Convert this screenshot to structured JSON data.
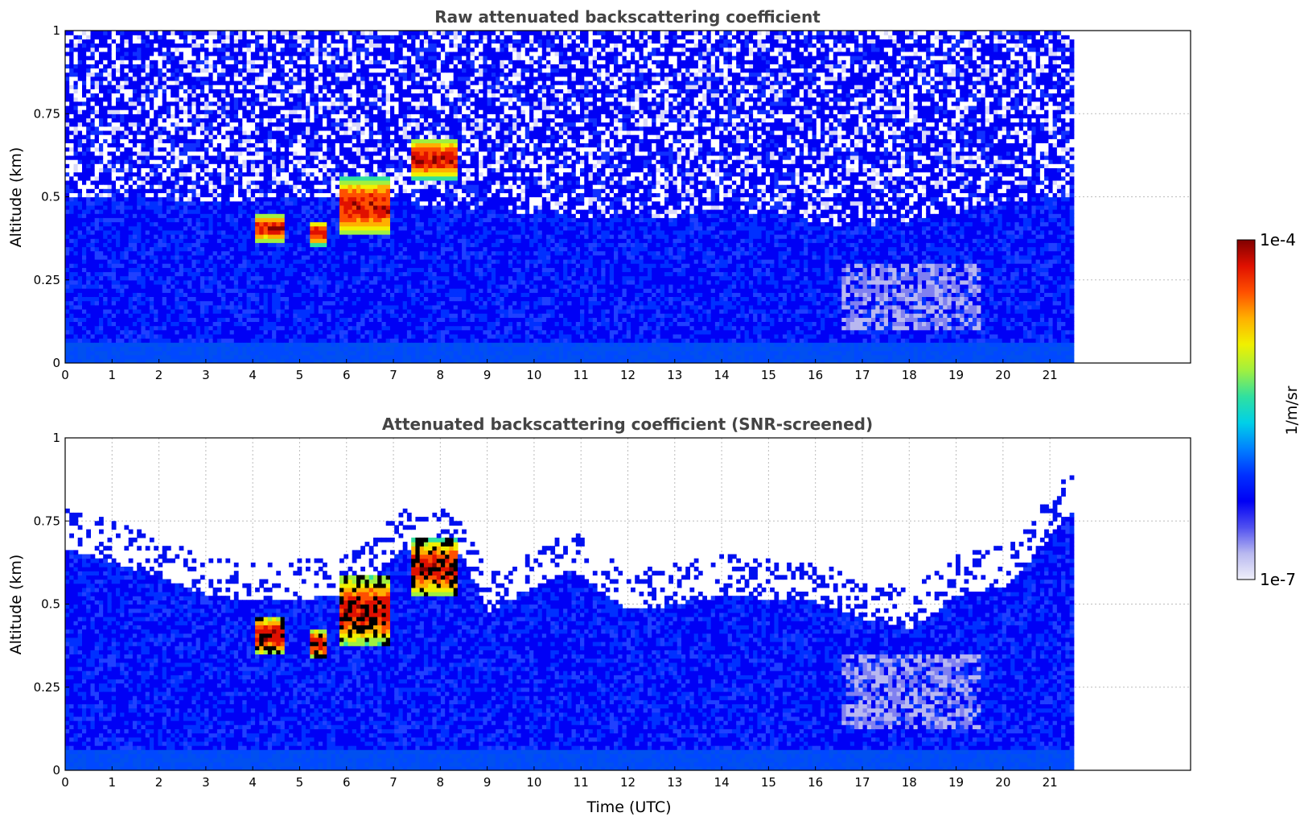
{
  "chart_data": [
    {
      "type": "heatmap",
      "title": "Raw attenuated backscattering coefficient",
      "ylabel": "Altitude (km)",
      "xlabel": "",
      "x_ticks": [
        "0",
        "1",
        "2",
        "3",
        "4",
        "5",
        "6",
        "7",
        "8",
        "9",
        "10",
        "11",
        "12",
        "13",
        "14",
        "15",
        "16",
        "17",
        "18",
        "19",
        "20",
        "21"
      ],
      "y_ticks": [
        "0",
        "0.25",
        "0.5",
        "0.75",
        "1"
      ],
      "xlim": [
        0,
        24
      ],
      "ylim": [
        0,
        1
      ],
      "data_extent_hours": 21.45,
      "grid": true,
      "features": [
        {
          "kind": "boundary_layer",
          "x": [
            0,
            3,
            6,
            9,
            12,
            15,
            16.5,
            18,
            20,
            21.45
          ],
          "top_km": [
            0.5,
            0.48,
            0.5,
            0.45,
            0.43,
            0.45,
            0.4,
            0.42,
            0.48,
            0.5
          ]
        },
        {
          "kind": "cloud",
          "x_start": 4.0,
          "x_end": 4.6,
          "base_km": 0.36,
          "top_km": 0.44
        },
        {
          "kind": "cloud",
          "x_start": 5.2,
          "x_end": 5.5,
          "base_km": 0.35,
          "top_km": 0.42
        },
        {
          "kind": "cloud",
          "x_start": 5.8,
          "x_end": 6.9,
          "base_km": 0.38,
          "top_km": 0.55
        },
        {
          "kind": "cloud",
          "x_start": 7.3,
          "x_end": 8.3,
          "base_km": 0.55,
          "top_km": 0.67
        },
        {
          "kind": "clear_region",
          "x_start": 16.5,
          "x_end": 19.5,
          "base_km": 0.1,
          "top_km": 0.3
        }
      ]
    },
    {
      "type": "heatmap",
      "title": "Attenuated backscattering coefficient (SNR-screened)",
      "ylabel": "Altitude (km)",
      "xlabel": "Time (UTC)",
      "x_ticks": [
        "0",
        "1",
        "2",
        "3",
        "4",
        "5",
        "6",
        "7",
        "8",
        "9",
        "10",
        "11",
        "12",
        "13",
        "14",
        "15",
        "16",
        "17",
        "18",
        "19",
        "20",
        "21"
      ],
      "y_ticks": [
        "0",
        "0.25",
        "0.5",
        "0.75",
        "1"
      ],
      "xlim": [
        0,
        24
      ],
      "ylim": [
        0,
        1
      ],
      "data_extent_hours": 21.45,
      "grid": true,
      "features": [
        {
          "kind": "boundary_layer",
          "x": [
            0,
            1,
            3,
            4,
            6,
            7.2,
            8.3,
            9,
            10.7,
            12,
            14,
            16,
            17,
            18,
            19,
            20,
            20.5,
            21.45
          ],
          "top_km": [
            0.66,
            0.62,
            0.52,
            0.5,
            0.52,
            0.66,
            0.66,
            0.47,
            0.6,
            0.47,
            0.52,
            0.5,
            0.45,
            0.42,
            0.52,
            0.55,
            0.62,
            0.78
          ]
        },
        {
          "kind": "cloud",
          "x_start": 4.0,
          "x_end": 4.6,
          "base_km": 0.34,
          "top_km": 0.46
        },
        {
          "kind": "cloud",
          "x_start": 5.2,
          "x_end": 5.5,
          "base_km": 0.33,
          "top_km": 0.42
        },
        {
          "kind": "cloud",
          "x_start": 5.8,
          "x_end": 6.9,
          "base_km": 0.37,
          "top_km": 0.58
        },
        {
          "kind": "cloud",
          "x_start": 7.3,
          "x_end": 8.3,
          "base_km": 0.52,
          "top_km": 0.69
        },
        {
          "kind": "clear_region",
          "x_start": 16.5,
          "x_end": 19.5,
          "base_km": 0.12,
          "top_km": 0.35
        }
      ]
    }
  ],
  "colorbar": {
    "label": "1/m/sr",
    "max_label": "1e-4",
    "min_label": "1e-7",
    "scale": "log",
    "range": [
      1e-07,
      0.0001
    ],
    "colormap": [
      "#f0f0fa",
      "#b8b8f0",
      "#5050f0",
      "#0000f5",
      "#0030ff",
      "#0080ff",
      "#00d0e8",
      "#30e0a0",
      "#a0f040",
      "#f0f000",
      "#ffb000",
      "#ff5000",
      "#e01000",
      "#800000"
    ]
  }
}
